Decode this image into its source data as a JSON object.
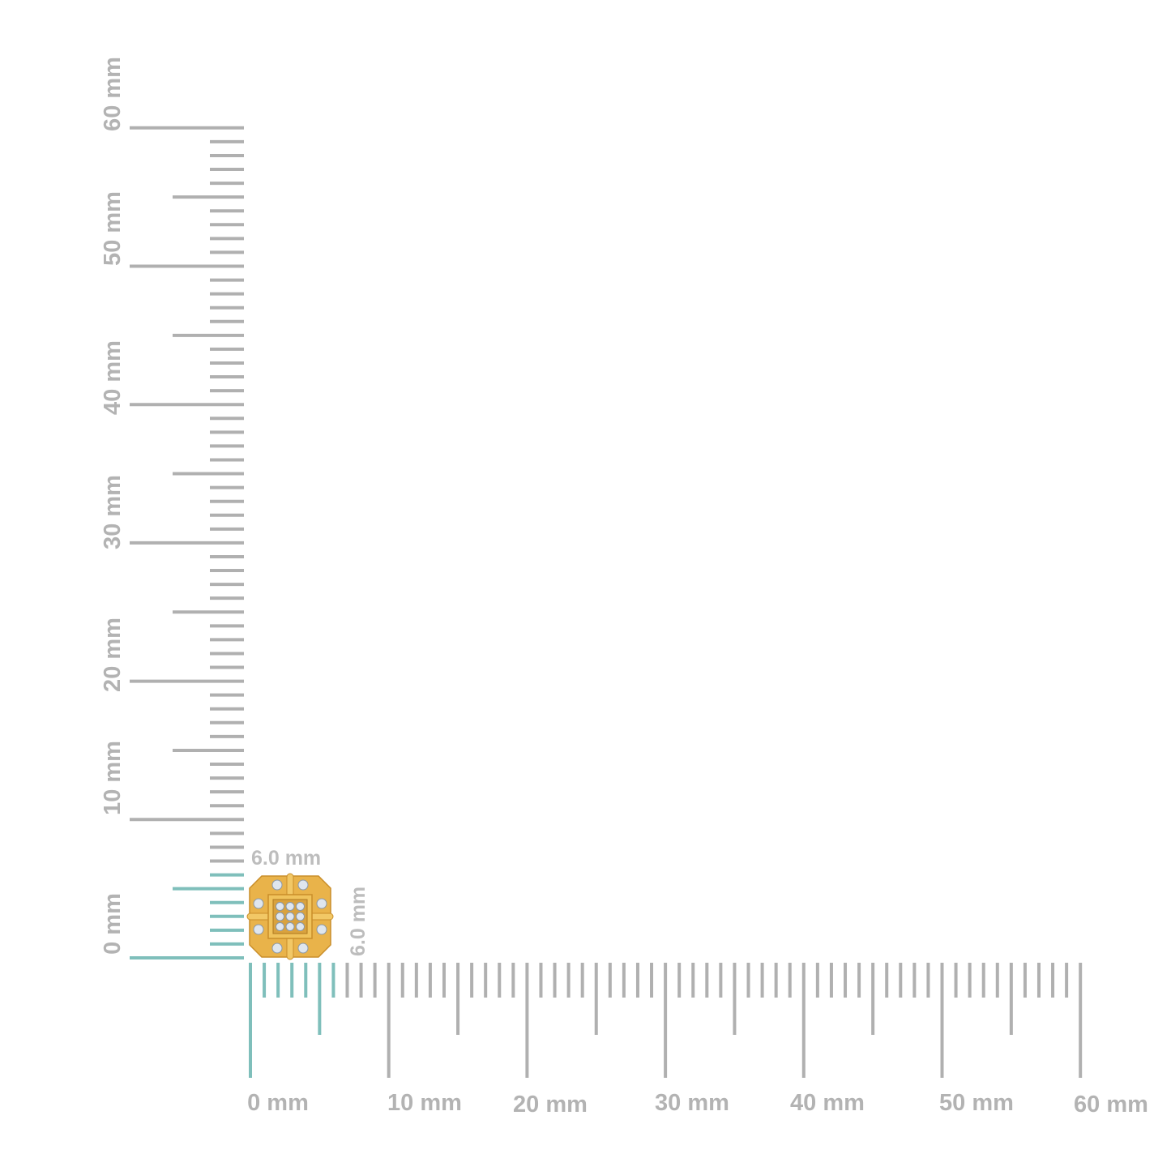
{
  "rulers": {
    "unit": "mm",
    "range_mm": [
      0,
      60
    ],
    "major_step_mm": 10,
    "half_step_mm": 5,
    "minor_step_mm": 1,
    "highlight_to_mm": 6,
    "highlight_color": "#7fbfbb",
    "tick_color": "#b0b0b0",
    "horizontal_labels": [
      "0 mm",
      "10 mm",
      "20 mm",
      "30 mm",
      "40 mm",
      "50 mm",
      "60 mm"
    ],
    "vertical_labels": [
      "0 mm",
      "10 mm",
      "20 mm",
      "30 mm",
      "40 mm",
      "50 mm",
      "60 mm"
    ]
  },
  "product": {
    "width_label": "6.0 mm",
    "height_label": "6.0 mm",
    "metal_color": "#e9b34a",
    "stone_color": "#dfe6ee"
  }
}
